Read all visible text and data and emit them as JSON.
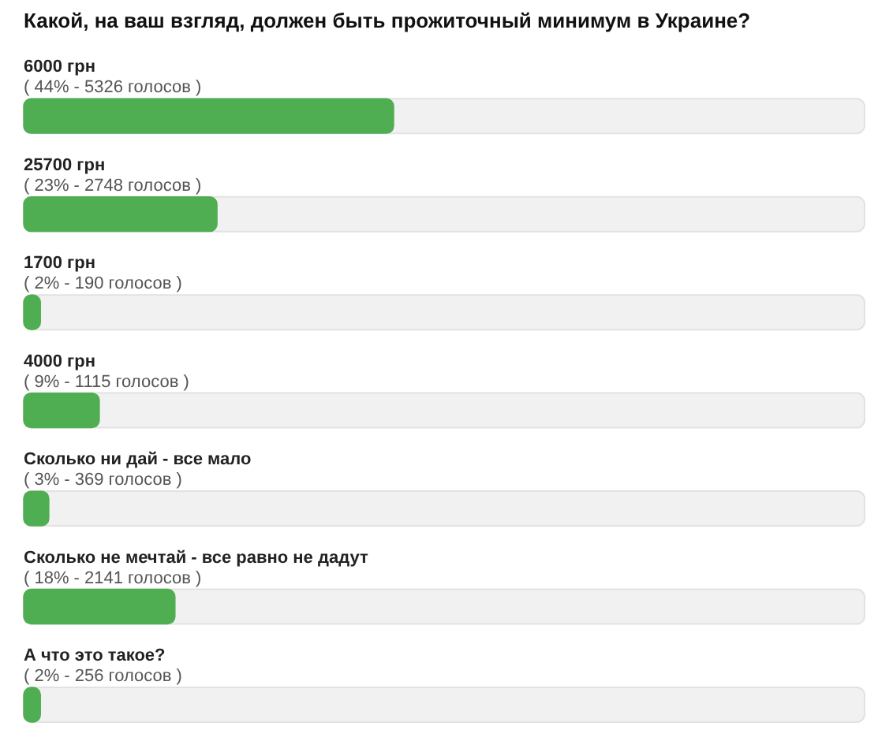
{
  "chart_data": {
    "type": "bar",
    "orientation": "horizontal",
    "title": "Какой, на ваш взгляд, должен быть прожиточный минимум в Украине?",
    "categories": [
      "6000 грн",
      "25700 грн",
      "1700 грн",
      "4000 грн",
      "Сколько ни дай - все мало",
      "Сколько не мечтай - все равно не дадут",
      "А что это такое?"
    ],
    "values": [
      44,
      23,
      2,
      9,
      3,
      18,
      2
    ],
    "value_labels": [
      "( 44% - 5326 голосов )",
      "( 23% - 2748 голосов )",
      "( 2% - 190 голосов )",
      "( 9% - 1115 голосов )",
      "( 3% - 369 голосов )",
      "( 18% - 2141 голосов )",
      "( 2% - 256 голосов )"
    ],
    "color": "#4fae52",
    "xlim": [
      0,
      100
    ],
    "tick_labels": false
  }
}
